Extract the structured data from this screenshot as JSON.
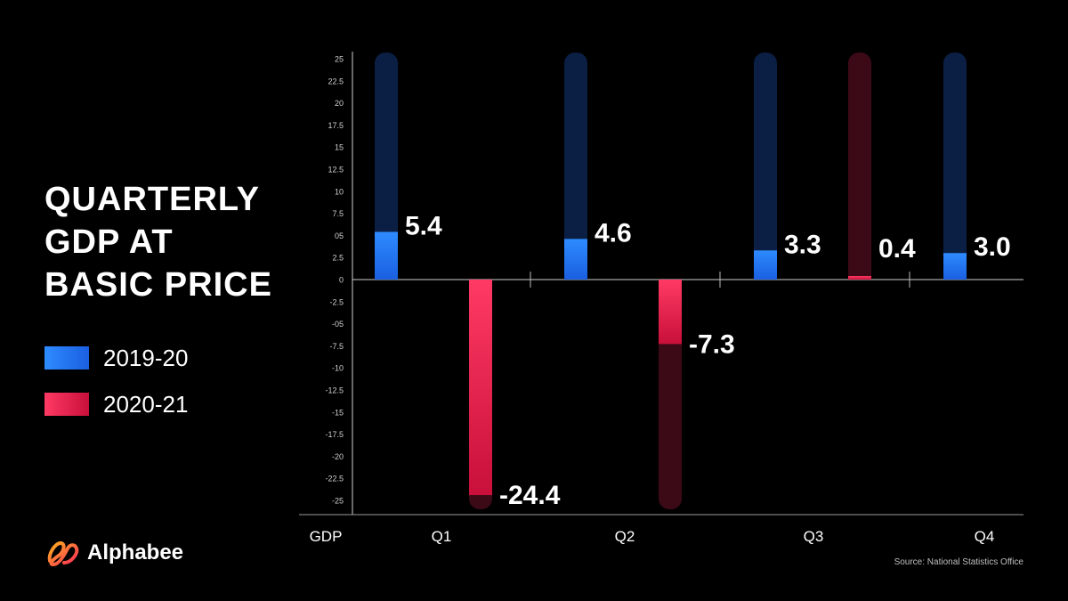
{
  "title_lines": [
    "QUARTERLY",
    "GDP AT",
    "BASIC PRICE"
  ],
  "legend": [
    {
      "label": "2019-20",
      "color": "#1f7cff"
    },
    {
      "label": "2020-21",
      "color": "#ff2a5a"
    }
  ],
  "brand": {
    "name": "Alphabee"
  },
  "source": "Source: National Statistics Office",
  "chart_data": {
    "type": "bar",
    "x_axis_label": "GDP",
    "categories": [
      "Q1",
      "Q2",
      "Q3",
      "Q4"
    ],
    "series": [
      {
        "name": "2019-20",
        "values": [
          5.4,
          4.6,
          3.3,
          3.0
        ],
        "color": "#1f7cff"
      },
      {
        "name": "2020-21",
        "values": [
          -24.4,
          -7.3,
          0.4,
          null
        ],
        "color": "#ff2a5a"
      }
    ],
    "value_labels": {
      "2019-20": [
        "5.4",
        "4.6",
        "3.3",
        "3.0"
      ],
      "2020-21": [
        "-24.4",
        "-7.3",
        "0.4",
        ""
      ]
    },
    "ylim": [
      -25,
      25
    ],
    "y_ticks": [
      "25",
      "22.5",
      "20",
      "17.5",
      "15",
      "12.5",
      "10",
      "7.5",
      "05",
      "2.5",
      "0",
      "-2.5",
      "-05",
      "-7.5",
      "-10",
      "-12.5",
      "-15",
      "-17.5",
      "-20",
      "-22.5",
      "-25"
    ]
  }
}
